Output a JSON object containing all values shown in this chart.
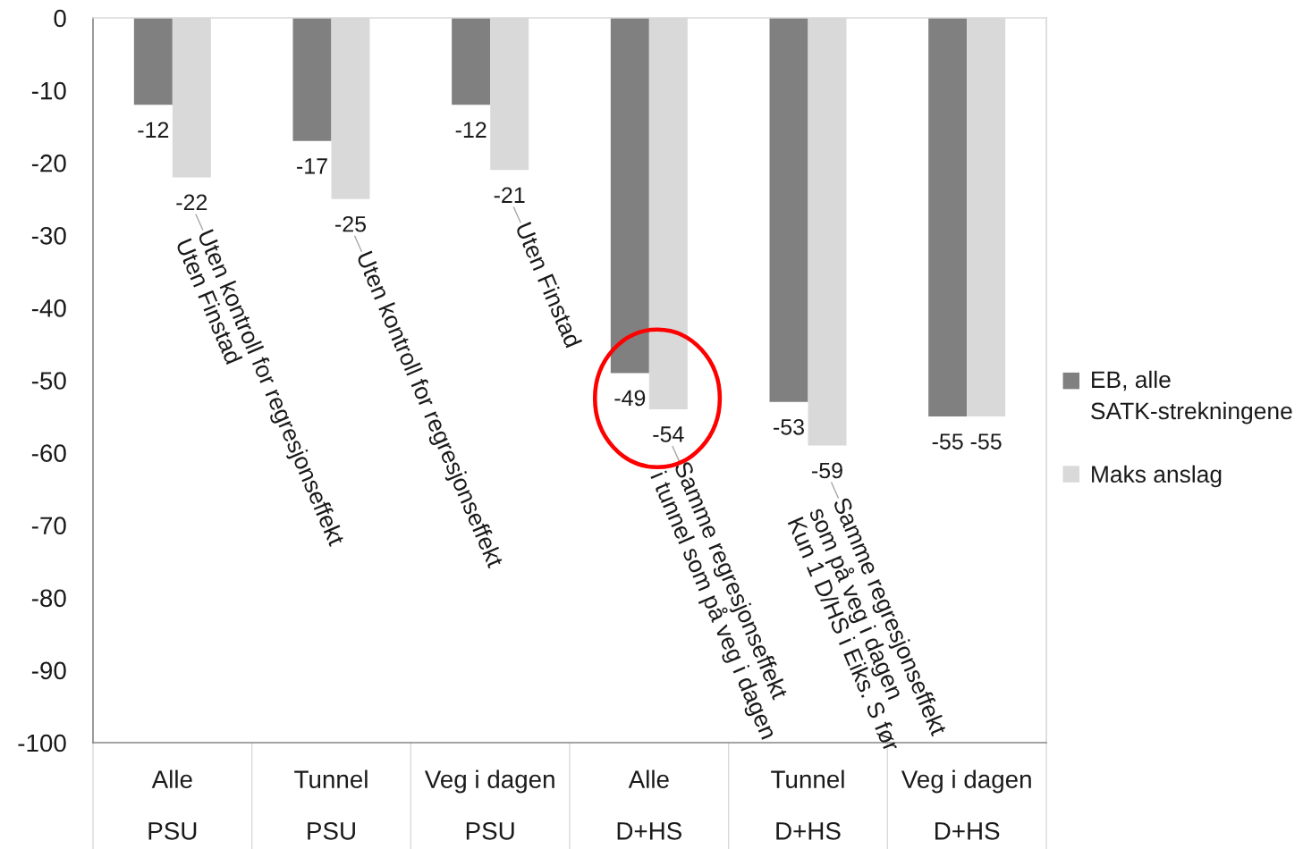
{
  "chart_data": {
    "type": "bar",
    "categories": [
      "Alle\nPSU",
      "Tunnel\nPSU",
      "Veg i dagen\nPSU",
      "Alle\nD+HS",
      "Tunnel\nD+HS",
      "Veg i dagen\nD+HS"
    ],
    "series": [
      {
        "name": "EB, alle\nSATK-strekningene",
        "color": "#808080",
        "values": [
          -12,
          -17,
          -12,
          -49,
          -53,
          -55
        ]
      },
      {
        "name": "Maks anslag",
        "color": "#d9d9d9",
        "values": [
          -22,
          -25,
          -21,
          -54,
          -59,
          -55
        ]
      }
    ],
    "ylim": [
      -100,
      0
    ],
    "yticks": [
      -100,
      -90,
      -80,
      -70,
      -60,
      -50,
      -40,
      -30,
      -20,
      -10,
      0
    ],
    "data_labels": true,
    "grid": false,
    "legend": "right",
    "annotations": [
      {
        "text": "Uten kontroll for regresjonseffekt\nUten Finstad",
        "x": "Alle\nPSU",
        "y": -22
      },
      {
        "text": "Uten kontroll for regresjonseffekt",
        "x": "Tunnel\nPSU",
        "y": -25
      },
      {
        "text": "Uten Finstad",
        "x": "Veg i dagen\nPSU",
        "y": -21
      },
      {
        "text": "Samme regresjonseffekt\ni tunnel som på veg i dagen",
        "x": "Alle\nD+HS",
        "y": -54
      },
      {
        "text": "Samme regresjonseffekt\nsom på veg i dagen\nKun 1 D/HS i Eiks. S før",
        "x": "Tunnel\nD+HS",
        "y": -59
      }
    ]
  }
}
